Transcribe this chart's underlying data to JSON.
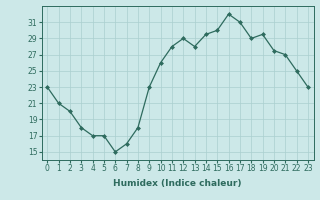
{
  "x": [
    0,
    1,
    2,
    3,
    4,
    5,
    6,
    7,
    8,
    9,
    10,
    11,
    12,
    13,
    14,
    15,
    16,
    17,
    18,
    19,
    20,
    21,
    22,
    23
  ],
  "y": [
    23,
    21,
    20,
    18,
    17,
    17,
    15,
    16,
    18,
    23,
    26,
    28,
    29,
    28,
    29.5,
    30,
    32,
    31,
    29,
    29.5,
    27.5,
    27,
    25,
    23
  ],
  "line_color": "#2e6b5e",
  "marker": "D",
  "marker_size": 2,
  "bg_color": "#cce8e8",
  "grid_color": "#aacfcf",
  "xlabel": "Humidex (Indice chaleur)",
  "ylim": [
    14,
    33
  ],
  "xlim": [
    -0.5,
    23.5
  ],
  "yticks": [
    15,
    17,
    19,
    21,
    23,
    25,
    27,
    29,
    31
  ],
  "xticks": [
    0,
    1,
    2,
    3,
    4,
    5,
    6,
    7,
    8,
    9,
    10,
    11,
    12,
    13,
    14,
    15,
    16,
    17,
    18,
    19,
    20,
    21,
    22,
    23
  ],
  "xlabel_fontsize": 6.5,
  "tick_fontsize": 5.5
}
